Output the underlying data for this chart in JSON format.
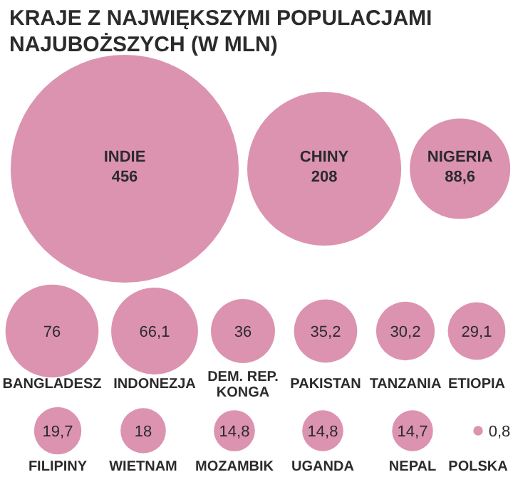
{
  "chart_data": {
    "type": "other",
    "title": "KRAJE Z NAJWIĘKSZYMI POPULACJAMI\nNAJUBOŻSZYCH (W MLN)",
    "categories": [
      "INDIE",
      "CHINY",
      "NIGERIA",
      "BANGLADESZ",
      "INDONEZJA",
      "DEM. REP.\nKONGA",
      "PAKISTAN",
      "TANZANIA",
      "ETIOPIA",
      "FILIPINY",
      "WIETNAM",
      "MOZAMBIK",
      "UGANDA",
      "NEPAL",
      "POLSKA"
    ],
    "values": [
      456,
      208,
      88.6,
      76,
      66.1,
      36,
      35.2,
      30.2,
      29.1,
      19.7,
      18,
      14.8,
      14.8,
      14.7,
      0.8
    ],
    "value_labels": [
      "456",
      "208",
      "88,6",
      "76",
      "66,1",
      "36",
      "35,2",
      "30,2",
      "29,1",
      "19,7",
      "18",
      "14,8",
      "14,8",
      "14,7",
      "0,8"
    ],
    "colors": [
      "#dc93b0",
      "#dc93b0",
      "#dc93b0",
      "#dc93b0",
      "#dc93b0",
      "#dc93b0",
      "#dc93b0",
      "#dc93b0",
      "#dc93b0",
      "#dc93b0",
      "#dc93b0",
      "#dc93b0",
      "#dc93b0",
      "#dc93b0",
      "#dc93b0"
    ]
  }
}
